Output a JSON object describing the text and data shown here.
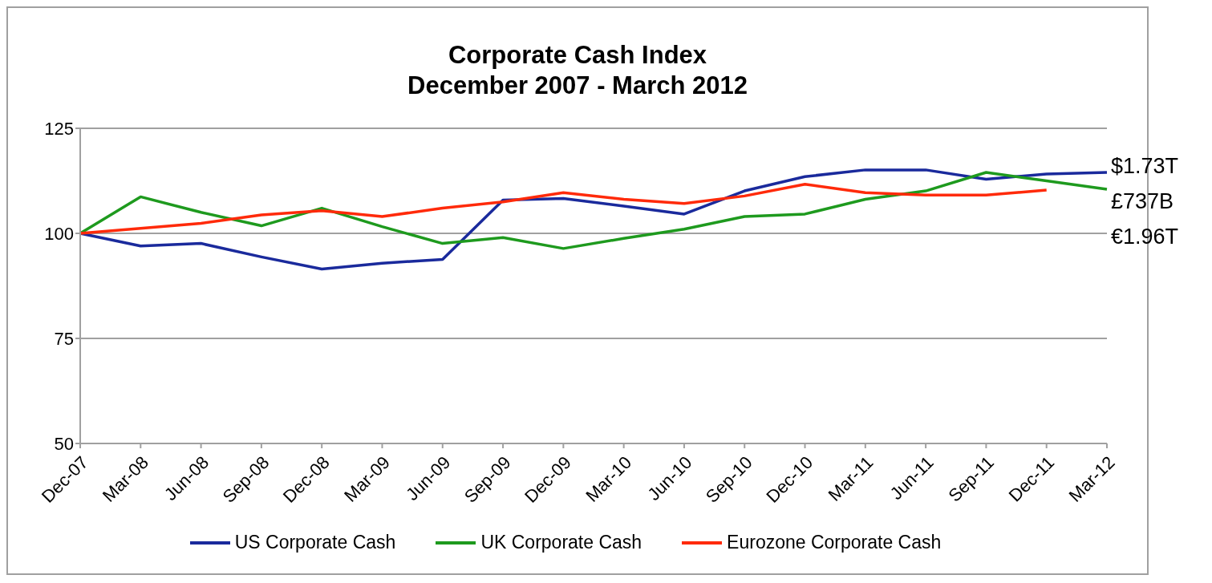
{
  "chart_data": {
    "type": "line",
    "title": "Corporate Cash Index\nDecember 2007 - March 2012",
    "categories": [
      "Dec-07",
      "Mar-08",
      "Jun-08",
      "Sep-08",
      "Dec-08",
      "Mar-09",
      "Jun-09",
      "Sep-09",
      "Dec-09",
      "Mar-10",
      "Jun-10",
      "Sep-10",
      "Dec-10",
      "Mar-11",
      "Jun-11",
      "Sep-11",
      "Dec-11",
      "Mar-12"
    ],
    "series": [
      {
        "name": "US Corporate Cash",
        "color": "#1a2a9c",
        "values": [
          100,
          97,
          97.6,
          94.4,
          91.5,
          92.9,
          93.8,
          107.9,
          108.3,
          106.5,
          104.6,
          110.1,
          113.5,
          115.1,
          115.1,
          112.9,
          114.1,
          114.5
        ]
      },
      {
        "name": "UK Corporate Cash",
        "color": "#1e9a1e",
        "values": [
          100,
          108.7,
          105,
          101.8,
          106,
          101.6,
          97.6,
          99,
          96.4,
          98.8,
          101,
          104,
          104.6,
          108.1,
          110.1,
          114.5,
          112.5,
          110.5
        ]
      },
      {
        "name": "Eurozone Corporate Cash",
        "color": "#ff2a0a",
        "values": [
          100,
          101.2,
          102.4,
          104.4,
          105.4,
          104,
          106,
          107.5,
          109.7,
          108.1,
          107.1,
          108.9,
          111.7,
          109.7,
          109.1,
          109.1,
          110.3,
          null
        ]
      }
    ],
    "ylim": [
      50,
      125
    ],
    "yticks": [
      50,
      75,
      100,
      125
    ],
    "grid": "y",
    "legend": "bottom",
    "marker": "none",
    "line_style": "solid",
    "annotations": [
      "$1.73T",
      "£737B",
      "€1.96T"
    ]
  }
}
